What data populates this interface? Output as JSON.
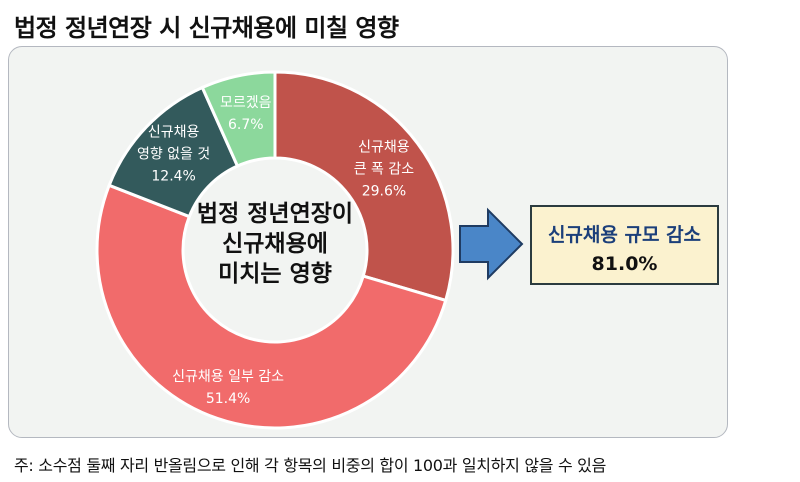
{
  "title": "법정 정년연장 시 신규채용에 미칠 영향",
  "chart_data": {
    "type": "pie",
    "title": "법정 정년연장 시 신규채용에 미칠 영향",
    "center_label": [
      "법정 정년연장이",
      "신규채용에",
      "미치는 영향"
    ],
    "slices": [
      {
        "label": [
          "신규채용",
          "큰 폭 감소"
        ],
        "value": 29.6,
        "value_label": "29.6%",
        "color": "#c0534b"
      },
      {
        "label": [
          "신규채용 일부 감소"
        ],
        "value": 51.4,
        "value_label": "51.4%",
        "color": "#f16b6b"
      },
      {
        "label": [
          "신규채용",
          "영향 없을 것"
        ],
        "value": 12.4,
        "value_label": "12.4%",
        "color": "#335a5c"
      },
      {
        "label": [
          "모르겠음"
        ],
        "value": 6.7,
        "value_label": "6.7%",
        "color": "#8cd89c"
      }
    ]
  },
  "summary": {
    "label": "신규채용 규모 감소",
    "value": "81.0%"
  },
  "arrow_color": "#4a86c8",
  "note": "주: 소수점 둘째 자리 반올림으로 인해 각 항목의 비중의 합이 100과 일치하지 않을 수 있음"
}
